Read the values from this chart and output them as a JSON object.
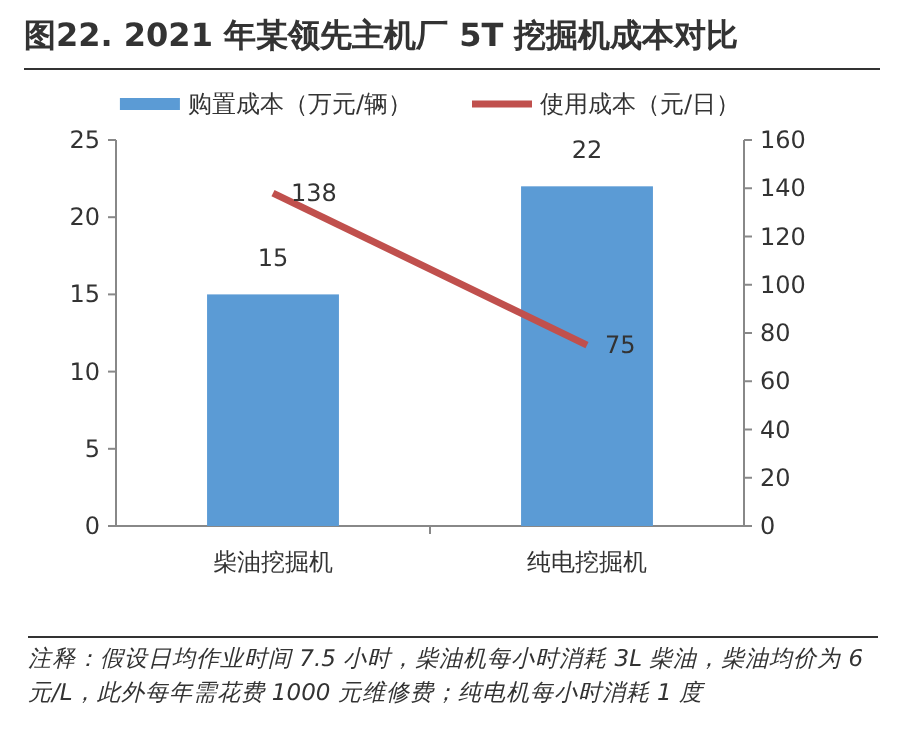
{
  "chart_data": {
    "type": "bar",
    "title": "图22. 2021 年某领先主机厂 5T 挖掘机成本对比",
    "categories": [
      "柴油挖掘机",
      "纯电挖掘机"
    ],
    "series": [
      {
        "name": "购置成本（万元/辆）",
        "color": "#5b9bd5",
        "values": [
          15,
          22
        ]
      },
      {
        "name": "使用成本（元/日）",
        "type": "line",
        "axis": "y2",
        "color": "#c0504d",
        "values": [
          138,
          75
        ]
      }
    ],
    "ylim": [
      0,
      25
    ],
    "yticks": [
      0,
      5,
      10,
      15,
      20,
      25
    ],
    "y2lim": [
      0,
      160
    ],
    "y2ticks": [
      0,
      20,
      40,
      60,
      80,
      100,
      120,
      140,
      160
    ],
    "data_labels": true,
    "legend": "top",
    "annotations": [
      "注释：假设日均作业时间 7.5 小时，柴油机每小时消耗 3L 柴油，柴油均价为 6 元/L，此外每年需花费 1000 元维修费；纯电机每小时消耗 1 度"
    ]
  }
}
